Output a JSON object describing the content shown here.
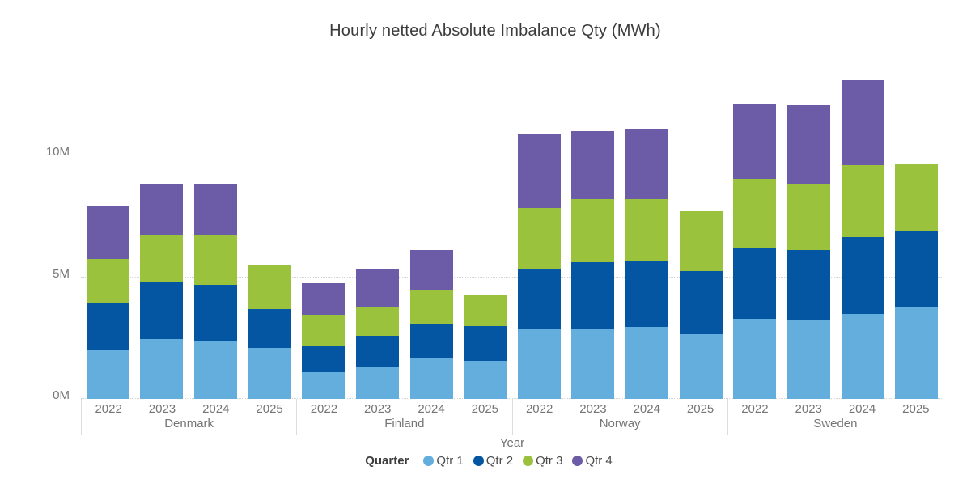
{
  "page": {
    "background": "#ffffff"
  },
  "chart_data": {
    "type": "bar",
    "stacked": true,
    "title": "Hourly netted Absolute Imbalance Qty (MWh)",
    "xlabel": "Year",
    "ylabel": "",
    "unit": "M MWh",
    "legend_title": "Quarter",
    "legend_position": "bottom",
    "grid": "horizontal dotted gridlines at 0M, 5M, 10M",
    "ylim": [
      0,
      13.6
    ],
    "y_ticks": [
      {
        "value": 0,
        "label": "0M"
      },
      {
        "value": 5,
        "label": "5M"
      },
      {
        "value": 10,
        "label": "10M"
      }
    ],
    "groups": [
      "Denmark",
      "Finland",
      "Norway",
      "Sweden"
    ],
    "years": [
      "2022",
      "2023",
      "2024",
      "2025"
    ],
    "series": [
      {
        "name": "Qtr 1",
        "color": "#63AEDC",
        "values": [
          2.0,
          2.45,
          2.35,
          2.1,
          1.1,
          1.3,
          1.7,
          1.55,
          2.85,
          2.9,
          2.95,
          2.65,
          3.3,
          3.25,
          3.5,
          3.8
        ]
      },
      {
        "name": "Qtr 2",
        "color": "#0456A2",
        "values": [
          1.95,
          2.35,
          2.35,
          1.6,
          1.1,
          1.3,
          1.4,
          1.45,
          2.45,
          2.7,
          2.7,
          2.6,
          2.9,
          2.85,
          3.15,
          3.1
        ]
      },
      {
        "name": "Qtr 3",
        "color": "#9AC23C",
        "values": [
          1.8,
          1.95,
          2.0,
          1.8,
          1.25,
          1.15,
          1.4,
          1.3,
          2.55,
          2.6,
          2.55,
          2.45,
          2.85,
          2.7,
          2.95,
          2.75
        ]
      },
      {
        "name": "Qtr 4",
        "color": "#6C5BA7",
        "values": [
          2.15,
          2.1,
          2.15,
          0,
          1.3,
          1.6,
          1.6,
          0,
          3.05,
          2.8,
          2.9,
          0,
          3.05,
          3.25,
          3.5,
          0
        ]
      }
    ],
    "totals": [
      7.9,
      8.85,
      8.85,
      5.5,
      4.75,
      5.35,
      6.1,
      4.3,
      10.9,
      11.0,
      11.1,
      7.7,
      12.1,
      12.05,
      13.1,
      9.65
    ]
  }
}
